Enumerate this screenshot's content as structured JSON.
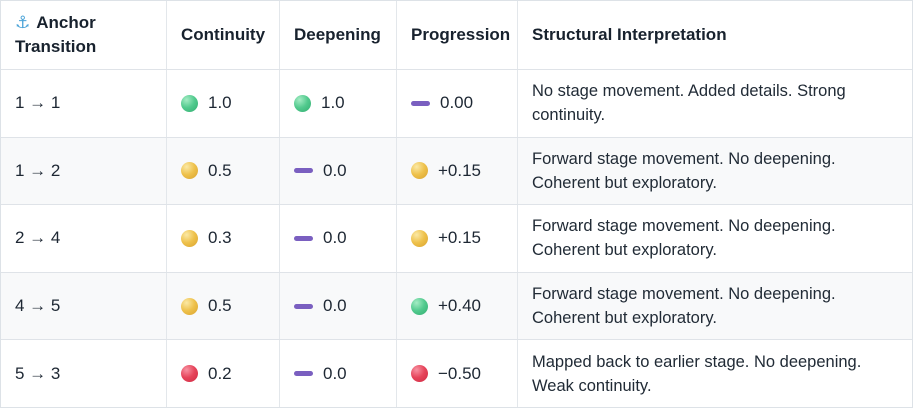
{
  "table": {
    "header": {
      "anchor_icon": "⚓",
      "columns": [
        "Anchor Transition",
        "Continuity",
        "Deepening",
        "Progression",
        "Structural Interpretation"
      ]
    },
    "rows": [
      {
        "transition": "1 → 1",
        "continuity": {
          "indicator": "green",
          "value": "1.0"
        },
        "deepening": {
          "indicator": "green",
          "value": "1.0"
        },
        "progression": {
          "indicator": "dash",
          "value": "0.00"
        },
        "interpretation": "No stage movement. Added details. Strong continuity."
      },
      {
        "transition": "1 → 2",
        "continuity": {
          "indicator": "yellow",
          "value": "0.5"
        },
        "deepening": {
          "indicator": "dash",
          "value": "0.0"
        },
        "progression": {
          "indicator": "yellow",
          "value": "+0.15"
        },
        "interpretation": "Forward stage movement. No deepening. Coherent but exploratory."
      },
      {
        "transition": "2 → 4",
        "continuity": {
          "indicator": "yellow",
          "value": "0.3"
        },
        "deepening": {
          "indicator": "dash",
          "value": "0.0"
        },
        "progression": {
          "indicator": "yellow",
          "value": "+0.15"
        },
        "interpretation": "Forward stage movement. No deepening. Coherent but exploratory."
      },
      {
        "transition": "4 → 5",
        "continuity": {
          "indicator": "yellow",
          "value": "0.5"
        },
        "deepening": {
          "indicator": "dash",
          "value": "0.0"
        },
        "progression": {
          "indicator": "green",
          "value": "+0.40"
        },
        "interpretation": "Forward stage movement. No deepening. Coherent but exploratory."
      },
      {
        "transition": "5 → 3",
        "continuity": {
          "indicator": "red",
          "value": "0.2"
        },
        "deepening": {
          "indicator": "dash",
          "value": "0.0"
        },
        "progression": {
          "indicator": "red",
          "value": "−0.50"
        },
        "interpretation": "Mapped back to earlier stage. No deepening. Weak continuity."
      }
    ],
    "colors": {
      "green": "#52ca8e",
      "yellow": "#eec14b",
      "red": "#e6445a",
      "dash": "#7a5fc0",
      "anchor": "#4aa3d8",
      "stripe_bg": "#f8f9fa",
      "border": "#dfe3e8"
    }
  }
}
